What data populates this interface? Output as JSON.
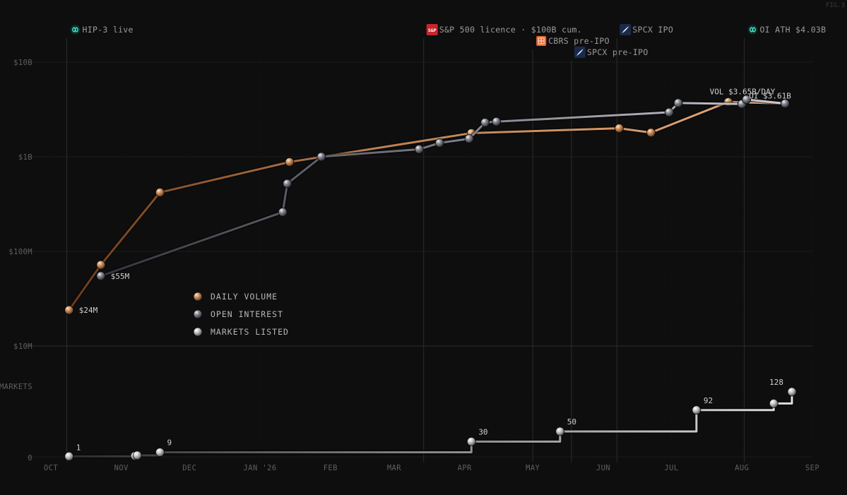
{
  "figure_tag": "FIG.3",
  "chart_data": {
    "type": "line",
    "y_scale": "log",
    "ylim": [
      10000000,
      20000000000
    ],
    "y_ticks": [
      {
        "value": 10000000000,
        "label": "$10B"
      },
      {
        "value": 1000000000,
        "label": "$1B"
      },
      {
        "value": 100000000,
        "label": "$100M"
      },
      {
        "value": 10000000,
        "label": "$10M"
      }
    ],
    "x_ticks": [
      {
        "date": "2025-10-01",
        "label": "OCT"
      },
      {
        "date": "2025-11-01",
        "label": "NOV"
      },
      {
        "date": "2025-12-01",
        "label": "DEC"
      },
      {
        "date": "2026-01-01",
        "label": "JAN '26"
      },
      {
        "date": "2026-02-01",
        "label": "FEB"
      },
      {
        "date": "2026-03-01",
        "label": "MAR"
      },
      {
        "date": "2026-04-01",
        "label": "APR"
      },
      {
        "date": "2026-05-01",
        "label": "MAY"
      },
      {
        "date": "2026-06-01",
        "label": "JUN"
      },
      {
        "date": "2026-07-01",
        "label": "JUL"
      },
      {
        "date": "2026-08-01",
        "label": "AUG"
      },
      {
        "date": "2026-09-01",
        "label": "SEP"
      }
    ],
    "legend": [
      {
        "name": "DAILY VOLUME",
        "color": "#c68a5c"
      },
      {
        "name": "OPEN INTEREST",
        "color": "#80808a"
      },
      {
        "name": "MARKETS LISTED",
        "color": "#d0d0d0"
      }
    ],
    "series": [
      {
        "name": "DAILY VOLUME",
        "color": "#c68a5c",
        "points": [
          {
            "date": "2025-10-09",
            "value": 24000000,
            "label": "$24M"
          },
          {
            "date": "2025-10-23",
            "value": 72000000
          },
          {
            "date": "2025-11-18",
            "value": 420000000
          },
          {
            "date": "2026-01-14",
            "value": 880000000
          },
          {
            "date": "2026-04-04",
            "value": 1780000000
          },
          {
            "date": "2026-06-08",
            "value": 2000000000
          },
          {
            "date": "2026-06-22",
            "value": 1800000000
          },
          {
            "date": "2026-07-26",
            "value": 3800000000
          },
          {
            "date": "2026-08-20",
            "value": 3650000000,
            "label": "VOL $3.65B/DAY"
          }
        ]
      },
      {
        "name": "OPEN INTEREST",
        "color": "#80808a",
        "points": [
          {
            "date": "2025-10-23",
            "value": 55000000,
            "label": "$55M"
          },
          {
            "date": "2026-01-11",
            "value": 260000000
          },
          {
            "date": "2026-01-13",
            "value": 520000000
          },
          {
            "date": "2026-01-28",
            "value": 1000000000
          },
          {
            "date": "2026-03-12",
            "value": 1200000000
          },
          {
            "date": "2026-03-21",
            "value": 1400000000
          },
          {
            "date": "2026-04-03",
            "value": 1550000000
          },
          {
            "date": "2026-04-10",
            "value": 2300000000
          },
          {
            "date": "2026-04-15",
            "value": 2350000000
          },
          {
            "date": "2026-06-30",
            "value": 2950000000
          },
          {
            "date": "2026-07-04",
            "value": 3700000000
          },
          {
            "date": "2026-08-01",
            "value": 3610000000,
            "label": "OI $3.61B"
          },
          {
            "date": "2026-08-03",
            "value": 4030000000
          },
          {
            "date": "2026-08-20",
            "value": 3650000000
          }
        ]
      },
      {
        "name": "MARKETS LISTED",
        "color": "#d0d0d0",
        "step": true,
        "points": [
          {
            "date": "2025-10-09",
            "value": 1,
            "label": "1"
          },
          {
            "date": "2025-11-07",
            "value": 2
          },
          {
            "date": "2025-11-08",
            "value": 3
          },
          {
            "date": "2025-11-18",
            "value": 9,
            "label": "9"
          },
          {
            "date": "2026-04-04",
            "value": 30,
            "label": "30"
          },
          {
            "date": "2026-05-13",
            "value": 50,
            "label": "50"
          },
          {
            "date": "2026-07-12",
            "value": 92,
            "label": "92"
          },
          {
            "date": "2026-08-15",
            "value": 105
          },
          {
            "date": "2026-08-23",
            "value": 128,
            "label": "128"
          }
        ]
      }
    ],
    "markets_axis": {
      "label": "MARKETS",
      "tick_zero": "0",
      "ylim": [
        0,
        140
      ]
    },
    "events": [
      {
        "date": "2025-10-08",
        "label": "HIP-3 live",
        "icon": "hyperliquid-logo-icon",
        "icon_color": "#3fe0c2",
        "row": 0
      },
      {
        "date": "2026-03-14",
        "label": "S&P 500 licence · $100B cum.",
        "icon": "sp-logo-icon",
        "icon_text": "S&P",
        "icon_color": "#c4262e",
        "row": 0
      },
      {
        "date": "2026-05-01",
        "label": "CBRS pre-IPO",
        "icon": "grid-logo-icon",
        "icon_color": "#e06a3a",
        "row": 1
      },
      {
        "date": "2026-05-18",
        "label": "SPCX pre-IPO",
        "icon": "spcx-logo-icon",
        "icon_color": "#1a2a4a",
        "row": 2
      },
      {
        "date": "2026-06-07",
        "label": "SPCX IPO",
        "icon": "spcx-logo-icon",
        "icon_color": "#1a2a4a",
        "row": 0
      },
      {
        "date": "2026-08-02",
        "label": "OI ATH $4.03B",
        "icon": "hyperliquid-logo-icon",
        "icon_color": "#3fe0c2",
        "row": 0
      }
    ]
  }
}
